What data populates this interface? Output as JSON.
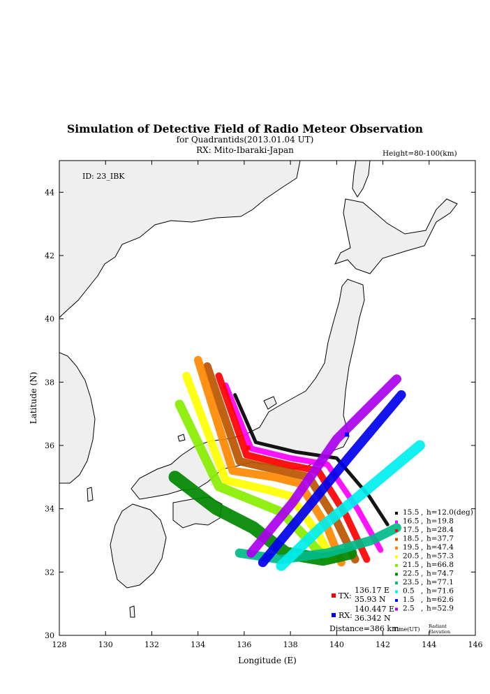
{
  "title": "Simulation of Detective Field of Radio Meteor Observation",
  "subtitle": "for Quadrantids(2013.01.04 UT)",
  "rx_location": "RX: Mito-Ibaraki-Japan",
  "height_range": "Height=80-100(km)",
  "id_label": "ID: 23_IBK",
  "distance": "Distance=386 km",
  "tx": {
    "label": "TX:",
    "lon": "136.17 E",
    "lat": "35.93 N",
    "color": "#ff0000",
    "lon_value": 136.17,
    "lat_value": 35.93
  },
  "rx": {
    "label": "RX:",
    "lon": "140.447 E",
    "lat": "36.342 N",
    "color": "#0000ff",
    "lon_value": 140.447,
    "lat_value": 36.342
  },
  "legend_footer": {
    "time": "Time(UT)",
    "radiant": "Radiant",
    "elevation": "Elevation"
  },
  "chart_data": {
    "type": "scatter",
    "xlabel": "Longitude (E)",
    "ylabel": "Latitude (N)",
    "xlim": [
      128,
      146
    ],
    "ylim": [
      30,
      45
    ],
    "x_ticks": [
      "128",
      "130",
      "132",
      "134",
      "136",
      "138",
      "140",
      "142",
      "144",
      "146"
    ],
    "y_ticks": [
      "30",
      "32",
      "34",
      "36",
      "38",
      "40",
      "42",
      "44"
    ],
    "series": [
      {
        "time": "15.5",
        "elev": "h=12.0(deg)",
        "color": "#000000",
        "path": [
          [
            135.6,
            37.6
          ],
          [
            136.5,
            36.1
          ],
          [
            138.2,
            35.8
          ],
          [
            140.0,
            35.6
          ],
          [
            141.4,
            34.4
          ],
          [
            142.2,
            33.5
          ]
        ],
        "width": 0.15
      },
      {
        "time": "16.5",
        "elev": "h=19.8",
        "color": "#ff00ff",
        "path": [
          [
            135.2,
            37.9
          ],
          [
            136.3,
            35.9
          ],
          [
            138.0,
            35.6
          ],
          [
            139.6,
            35.4
          ],
          [
            140.9,
            34.0
          ],
          [
            141.9,
            32.7
          ]
        ],
        "width": 0.25
      },
      {
        "time": "17.5",
        "elev": "h=28.4",
        "color": "#ff0000",
        "path": [
          [
            134.9,
            38.2
          ],
          [
            136.1,
            35.7
          ],
          [
            137.8,
            35.4
          ],
          [
            139.2,
            35.2
          ],
          [
            140.4,
            33.8
          ],
          [
            141.3,
            32.4
          ]
        ],
        "width": 0.3
      },
      {
        "time": "18.5",
        "elev": "h=37.7",
        "color": "#bb5500",
        "path": [
          [
            134.4,
            38.5
          ],
          [
            135.8,
            35.5
          ],
          [
            137.6,
            35.2
          ],
          [
            138.8,
            35.0
          ],
          [
            140.0,
            33.6
          ],
          [
            140.8,
            32.4
          ]
        ],
        "width": 0.35
      },
      {
        "time": "19.5",
        "elev": "h=47.4",
        "color": "#ff8800",
        "path": [
          [
            134.0,
            38.7
          ],
          [
            135.5,
            35.2
          ],
          [
            137.3,
            35.0
          ],
          [
            138.4,
            34.8
          ],
          [
            139.6,
            33.4
          ],
          [
            140.2,
            32.3
          ]
        ],
        "width": 0.35
      },
      {
        "time": "20.5",
        "elev": "h=57.3",
        "color": "#ffff00",
        "path": [
          [
            133.5,
            38.2
          ],
          [
            135.2,
            34.9
          ],
          [
            137.0,
            34.6
          ],
          [
            138.0,
            34.4
          ],
          [
            139.2,
            33.2
          ],
          [
            139.8,
            32.4
          ]
        ],
        "width": 0.35
      },
      {
        "time": "21.5",
        "elev": "h=66.8",
        "color": "#88ee00",
        "path": [
          [
            133.2,
            37.3
          ],
          [
            134.9,
            34.7
          ],
          [
            136.6,
            34.2
          ],
          [
            137.6,
            33.9
          ],
          [
            138.8,
            33.0
          ],
          [
            139.4,
            32.5
          ]
        ],
        "width": 0.4
      },
      {
        "time": "22.5",
        "elev": "h=74.7",
        "color": "#008800",
        "path": [
          [
            133.0,
            35.0
          ],
          [
            134.8,
            34.0
          ],
          [
            136.4,
            33.4
          ],
          [
            137.8,
            32.6
          ],
          [
            139.4,
            32.4
          ],
          [
            140.6,
            32.6
          ]
        ],
        "width": 0.55
      },
      {
        "time": "23.5",
        "elev": "h=77.1",
        "color": "#00bb88",
        "path": [
          [
            135.8,
            32.6
          ],
          [
            137.6,
            32.4
          ],
          [
            139.6,
            32.6
          ],
          [
            141.5,
            33.0
          ],
          [
            142.6,
            33.4
          ]
        ],
        "width": 0.4
      },
      {
        "time": "0.5",
        "elev": "h=71.6",
        "color": "#00eeee",
        "path": [
          [
            137.6,
            32.2
          ],
          [
            139.3,
            33.4
          ],
          [
            141.3,
            34.6
          ],
          [
            143.6,
            36.0
          ]
        ],
        "width": 0.45
      },
      {
        "time": "1.5",
        "elev": "h=62.6",
        "color": "#0000ee",
        "path": [
          [
            136.8,
            32.3
          ],
          [
            138.6,
            33.9
          ],
          [
            140.5,
            35.6
          ],
          [
            142.8,
            37.6
          ]
        ],
        "width": 0.4
      },
      {
        "time": "2.5",
        "elev": "h=52.9",
        "color": "#aa00ee",
        "path": [
          [
            136.3,
            32.6
          ],
          [
            138.1,
            34.2
          ],
          [
            140.0,
            36.2
          ],
          [
            142.6,
            38.1
          ]
        ],
        "width": 0.4
      }
    ]
  }
}
